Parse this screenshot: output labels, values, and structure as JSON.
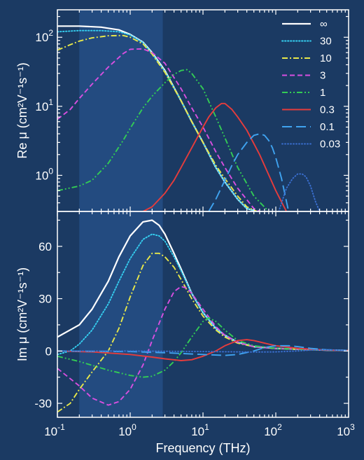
{
  "chart_data": {
    "type": "line",
    "xlabel": "Frequency (THz)",
    "xscale": "log",
    "xlim": [
      0.1,
      1000
    ],
    "x_ticks": [
      "10-1",
      "100",
      "101",
      "102",
      "103"
    ],
    "background": "#1b3a63",
    "shaded_band": {
      "from": 0.2,
      "to": 2.8,
      "color": "#234b80"
    },
    "legend_position": "top-right",
    "series_styles": [
      {
        "name": "∞",
        "color": "#ffffff",
        "dash": "solid"
      },
      {
        "name": "30",
        "color": "#35cff0",
        "dash": "dotted"
      },
      {
        "name": "10",
        "color": "#e8e84a",
        "dash": "dashdot"
      },
      {
        "name": "3",
        "color": "#d84fe0",
        "dash": "dashed"
      },
      {
        "name": "1",
        "color": "#33cc55",
        "dash": "dashdotdot"
      },
      {
        "name": "0.3",
        "color": "#e63c3c",
        "dash": "solid"
      },
      {
        "name": "0.1",
        "color": "#3fa3f0",
        "dash": "longdash"
      },
      {
        "name": "0.03",
        "color": "#3a6fd0",
        "dash": "dots"
      }
    ],
    "panels": [
      {
        "id": "re",
        "ylabel": "Re μ (cm²V⁻¹s⁻¹)",
        "yscale": "log",
        "ylim": [
          0.3,
          250
        ],
        "y_ticks": [
          "100",
          "101",
          "102"
        ],
        "series": [
          {
            "name": "∞",
            "x": [
              0.1,
              0.2,
              0.4,
              0.7,
              1,
              1.5,
              2,
              3,
              5,
              7,
              10,
              15,
              20,
              30,
              40,
              50,
              55
            ],
            "y": [
              145,
              145,
              140,
              128,
              110,
              85,
              60,
              33,
              12,
              6,
              3,
              1.3,
              0.8,
              0.45,
              0.33,
              0.31,
              0.3
            ]
          },
          {
            "name": "30",
            "x": [
              0.1,
              0.2,
              0.4,
              0.7,
              1,
              1.5,
              2,
              3,
              5,
              7,
              10,
              15,
              20,
              30,
              40,
              50,
              55
            ],
            "y": [
              120,
              125,
              125,
              120,
              108,
              84,
              58,
              32,
              12,
              6,
              3,
              1.3,
              0.8,
              0.45,
              0.33,
              0.31,
              0.3
            ]
          },
          {
            "name": "10",
            "x": [
              0.1,
              0.15,
              0.2,
              0.3,
              0.5,
              0.8,
              1,
              1.5,
              2,
              3,
              5,
              7,
              10,
              15,
              20,
              30,
              40,
              55
            ],
            "y": [
              65,
              78,
              88,
              98,
              105,
              106,
              100,
              80,
              57,
              31,
              12,
              6,
              3,
              1.4,
              0.9,
              0.5,
              0.35,
              0.3
            ]
          },
          {
            "name": "3",
            "x": [
              0.1,
              0.15,
              0.2,
              0.3,
              0.5,
              0.8,
              1,
              1.5,
              2,
              3,
              5,
              7,
              10,
              15,
              20,
              30,
              50,
              60
            ],
            "y": [
              6.5,
              9,
              13,
              21,
              37,
              58,
              67,
              68,
              60,
              42,
              18,
              9.5,
              5,
              2.2,
              1.3,
              0.65,
              0.33,
              0.3
            ]
          },
          {
            "name": "1",
            "x": [
              0.1,
              0.2,
              0.3,
              0.5,
              0.8,
              1,
              1.5,
              2,
              3,
              4,
              5,
              6,
              7,
              10,
              15,
              20,
              30,
              50,
              80
            ],
            "y": [
              0.6,
              0.7,
              0.85,
              1.5,
              3.2,
              4.8,
              9.5,
              14,
              22,
              29,
              33,
              34,
              30,
              18,
              7,
              3.5,
              1.3,
              0.5,
              0.3
            ]
          },
          {
            "name": "0.3",
            "x": [
              1.5,
              2,
              3,
              4,
              5,
              7,
              10,
              12,
              15,
              18,
              20,
              25,
              30,
              40,
              60,
              100,
              140
            ],
            "y": [
              0.3,
              0.35,
              0.55,
              0.85,
              1.3,
              2.5,
              5,
              7,
              9.5,
              11,
              11,
              9,
              7,
              4.5,
              2,
              0.6,
              0.3
            ]
          },
          {
            "name": "0.1",
            "x": [
              12,
              15,
              20,
              25,
              30,
              40,
              50,
              60,
              70,
              80,
              90,
              100,
              120,
              150
            ],
            "y": [
              0.3,
              0.45,
              0.85,
              1.4,
              2,
              3,
              3.8,
              4,
              3.8,
              3.2,
              2.5,
              1.8,
              0.9,
              0.3
            ]
          },
          {
            "name": "0.03",
            "x": [
              110,
              120,
              140,
              170,
              200,
              230,
              260,
              300,
              350,
              400
            ],
            "y": [
              0.3,
              0.4,
              0.65,
              0.9,
              1.05,
              1.05,
              0.95,
              0.7,
              0.42,
              0.3
            ]
          }
        ]
      },
      {
        "id": "im",
        "ylabel": "Im μ (cm²V⁻¹s⁻¹)",
        "yscale": "linear",
        "ylim": [
          -38,
          80
        ],
        "y_ticks": [
          "-30",
          "0",
          "30",
          "60"
        ],
        "series": [
          {
            "name": "∞",
            "x": [
              0.1,
              0.2,
              0.3,
              0.5,
              0.7,
              1,
              1.5,
              2,
              2.5,
              3,
              4,
              5,
              7,
              10,
              15,
              20,
              30,
              50,
              100,
              200,
              500,
              1000
            ],
            "y": [
              8,
              15,
              24,
              40,
              54,
              66,
              74,
              75,
              72,
              67,
              56,
              47,
              33,
              22,
              13,
              9,
              5,
              2.5,
              1.5,
              1,
              0.5,
              0.3
            ]
          },
          {
            "name": "30",
            "x": [
              0.1,
              0.15,
              0.2,
              0.3,
              0.5,
              0.7,
              1,
              1.5,
              2,
              2.5,
              3,
              4,
              5,
              7,
              10,
              15,
              20,
              30,
              50,
              100,
              200,
              500,
              1000
            ],
            "y": [
              -2,
              0,
              4,
              12,
              27,
              40,
              53,
              64,
              67,
              66,
              63,
              54,
              46,
              33,
              22,
              13,
              9,
              5,
              2.5,
              1.5,
              1,
              0.5,
              0.3
            ]
          },
          {
            "name": "10",
            "x": [
              0.1,
              0.15,
              0.2,
              0.3,
              0.5,
              0.7,
              1,
              1.5,
              2,
              2.5,
              3,
              4,
              5,
              7,
              10,
              15,
              20,
              30,
              50,
              100,
              200,
              500,
              1000
            ],
            "y": [
              -35,
              -30,
              -22,
              -12,
              0,
              13,
              31,
              49,
              56,
              56,
              54,
              48,
              41,
              30,
              20,
              12,
              8,
              4.5,
              2.5,
              1.5,
              1,
              0.5,
              0.3
            ]
          },
          {
            "name": "3",
            "x": [
              0.1,
              0.2,
              0.3,
              0.5,
              0.7,
              1,
              1.5,
              2,
              3,
              4,
              5,
              6,
              7,
              10,
              15,
              20,
              30,
              50,
              100,
              200,
              500,
              1000
            ],
            "y": [
              -10,
              -20,
              -27,
              -31,
              -29,
              -22,
              -8,
              6,
              24,
              34,
              37,
              36,
              33,
              24,
              14,
              9,
              5,
              2.5,
              1.5,
              1,
              0.5,
              0.3
            ]
          },
          {
            "name": "1",
            "x": [
              0.1,
              0.2,
              0.5,
              1,
              1.5,
              2,
              3,
              4,
              5,
              7,
              10,
              12,
              15,
              20,
              30,
              50,
              100,
              200,
              500,
              1000
            ],
            "y": [
              -3,
              -6,
              -11,
              -14,
              -15,
              -14.5,
              -11,
              -6,
              -1,
              8,
              17,
              19,
              17,
              12,
              6,
              3,
              1.5,
              1,
              0.5,
              0.3
            ]
          },
          {
            "name": "0.3",
            "x": [
              0.1,
              0.3,
              1,
              2,
              3,
              5,
              7,
              10,
              15,
              20,
              30,
              40,
              50,
              70,
              100,
              200,
              500,
              1000
            ],
            "y": [
              0,
              -0.5,
              -2,
              -3.5,
              -4.5,
              -5.5,
              -5,
              -3,
              0,
              3,
              6,
              6.5,
              6,
              4.5,
              3,
              1.5,
              0.5,
              0.3
            ]
          },
          {
            "name": "0.1",
            "x": [
              0.1,
              1,
              3,
              10,
              20,
              30,
              50,
              70,
              100,
              150,
              200,
              300,
              500,
              1000
            ],
            "y": [
              0,
              -0.3,
              -1,
              -2,
              -2.5,
              -2,
              0,
              2,
              3,
              3,
              2.5,
              1.5,
              0.7,
              0.3
            ]
          },
          {
            "name": "0.03",
            "x": [
              0.1,
              1,
              10,
              50,
              100,
              200,
              300,
              500,
              1000
            ],
            "y": [
              0,
              0,
              -0.3,
              -0.6,
              -0.5,
              0,
              0.5,
              0.7,
              0.3
            ]
          }
        ]
      }
    ]
  }
}
